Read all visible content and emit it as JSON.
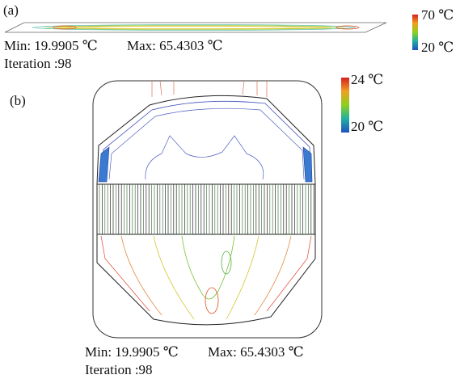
{
  "panel_a": {
    "label": "(a)",
    "colorbar_max": "70 ℃",
    "colorbar_min": "20 ℃",
    "min_text": "Min: 19.9905 ℃",
    "max_text": "Max: 65.4303 ℃",
    "iteration": "Iteration :98"
  },
  "panel_b": {
    "label": "(b)",
    "colorbar_max": "24 ℃",
    "colorbar_min": "20 ℃",
    "min_text": "Min: 19.9905 ℃",
    "max_text": "Max: 65.4303 ℃",
    "iteration": "Iteration :98"
  }
}
